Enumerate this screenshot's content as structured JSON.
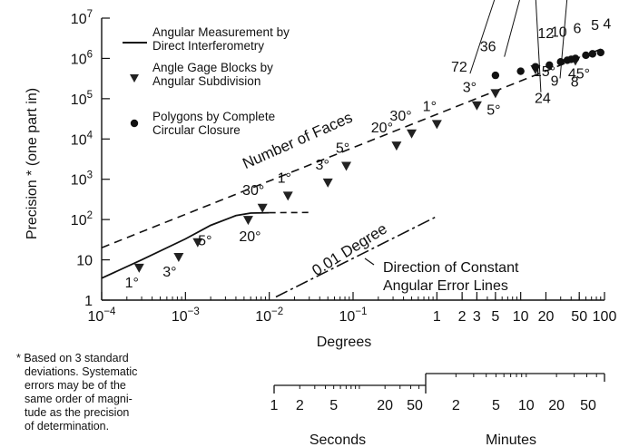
{
  "chart_data": {
    "type": "scatter",
    "x_scale": "log",
    "y_scale": "log",
    "xlabel": "Degrees",
    "ylabel": "Precision * (one part in)",
    "xlim": [
      0.0001,
      100
    ],
    "ylim": [
      1,
      10000000
    ],
    "grid": false,
    "legend_placement": "top-left",
    "x_ticks": [
      {
        "value": 0.0001,
        "base": "10",
        "exp": "−4"
      },
      {
        "value": 0.001,
        "base": "10",
        "exp": "−3"
      },
      {
        "value": 0.01,
        "base": "10",
        "exp": "−2"
      },
      {
        "value": 0.1,
        "base": "10",
        "exp": "−1"
      },
      {
        "value": 1,
        "base": "1",
        "exp": ""
      },
      {
        "value": 2,
        "base": "2",
        "exp": ""
      },
      {
        "value": 3,
        "base": "3",
        "exp": ""
      },
      {
        "value": 5,
        "base": "5",
        "exp": ""
      },
      {
        "value": 10,
        "base": "10",
        "exp": ""
      },
      {
        "value": 20,
        "base": "20",
        "exp": ""
      },
      {
        "value": 50,
        "base": "50",
        "exp": ""
      },
      {
        "value": 100,
        "base": "100",
        "exp": ""
      }
    ],
    "y_ticks": [
      {
        "value": 1,
        "base": "1",
        "exp": ""
      },
      {
        "value": 10,
        "base": "10",
        "exp": ""
      },
      {
        "value": 100,
        "base": "10",
        "exp": "2"
      },
      {
        "value": 1000,
        "base": "10",
        "exp": "3"
      },
      {
        "value": 10000,
        "base": "10",
        "exp": "4"
      },
      {
        "value": 100000,
        "base": "10",
        "exp": "5"
      },
      {
        "value": 1000000,
        "base": "10",
        "exp": "6"
      },
      {
        "value": 10000000,
        "base": "10",
        "exp": "7"
      }
    ],
    "legend": [
      {
        "marker": "line",
        "text": [
          "Angular Measurement by",
          "Direct Interferometry"
        ]
      },
      {
        "marker": "triangle",
        "text": [
          "Angle Gage Blocks by",
          "Angular Subdivision"
        ]
      },
      {
        "marker": "circle",
        "text": [
          "Polygons by Complete",
          "Circular Closure"
        ]
      }
    ],
    "series": [
      {
        "name": "Angular Measurement by Direct Interferometry",
        "marker": "line",
        "x": [
          0.0001,
          0.0003,
          0.001,
          0.002,
          0.004,
          0.006,
          0.01
        ],
        "y": [
          3.5,
          10,
          33,
          72,
          125,
          145,
          148
        ],
        "dashed_extension": {
          "x": [
            0.01,
            0.03
          ],
          "y": [
            148,
            150
          ]
        }
      },
      {
        "name": "Angle Gage Blocks by Angular Subdivision",
        "marker": "triangle",
        "points": [
          {
            "x": 0.00028,
            "y": 6.5,
            "label": "1°"
          },
          {
            "x": 0.00083,
            "y": 12,
            "label": "3°"
          },
          {
            "x": 0.0014,
            "y": 28,
            "label": "5°"
          },
          {
            "x": 0.0056,
            "y": 100,
            "label": "20°"
          },
          {
            "x": 0.0083,
            "y": 200,
            "label": "30°"
          },
          {
            "x": 0.0167,
            "y": 400,
            "label": "1°"
          },
          {
            "x": 0.05,
            "y": 850,
            "label": "3°"
          },
          {
            "x": 0.083,
            "y": 2200,
            "label": "5°"
          },
          {
            "x": 0.33,
            "y": 7000,
            "label": "20°"
          },
          {
            "x": 0.5,
            "y": 14000,
            "label": "30°"
          },
          {
            "x": 1,
            "y": 24000,
            "label": "1°"
          },
          {
            "x": 3,
            "y": 70000,
            "label": "3°"
          },
          {
            "x": 5,
            "y": 140000,
            "label": "5°"
          },
          {
            "x": 15,
            "y": 550000,
            "label": "15°"
          },
          {
            "x": 45,
            "y": 900000,
            "label": "45°"
          }
        ]
      },
      {
        "name": "Polygons by Complete Circular Closure",
        "marker": "circle",
        "points": [
          {
            "x": 5,
            "y": 380000,
            "label": "72"
          },
          {
            "x": 10,
            "y": 480000,
            "label": "36"
          },
          {
            "x": 15,
            "y": 620000,
            "label": "24"
          },
          {
            "x": 22,
            "y": 680000,
            "label": "12"
          },
          {
            "x": 30,
            "y": 820000,
            "label": "10"
          },
          {
            "x": 36,
            "y": 900000,
            "label": "9"
          },
          {
            "x": 40,
            "y": 950000,
            "label": "8"
          },
          {
            "x": 45,
            "y": 1000000,
            "label": "6"
          },
          {
            "x": 60,
            "y": 1200000,
            "label": "5"
          },
          {
            "x": 72,
            "y": 1300000,
            "label": "4"
          },
          {
            "x": 90,
            "y": 1400000,
            "label": ""
          }
        ]
      },
      {
        "name": "Number of Faces",
        "marker": "dashed",
        "x": [
          0.0001,
          90
        ],
        "y": [
          20,
          1700000
        ]
      },
      {
        "name": "0.01 Degree",
        "marker": "dash-dot",
        "x": [
          0.012,
          1
        ],
        "y": [
          1.2,
          120
        ]
      }
    ],
    "annotations": {
      "faces": "Number of Faces",
      "degree": "0.01 Degree",
      "direction_line1": "Direction of Constant",
      "direction_line2": "Angular Error Lines"
    },
    "angle_scale": {
      "seconds_ticks": [
        "1",
        "2",
        "5",
        "20",
        "50"
      ],
      "seconds_values": [
        1,
        2,
        5,
        20,
        50
      ],
      "minutes_ticks": [
        "2",
        "5",
        "10",
        "20",
        "50"
      ],
      "minutes_values": [
        2,
        5,
        10,
        20,
        50
      ],
      "seconds_label": "Seconds",
      "minutes_label": "Minutes"
    }
  },
  "footnote": [
    "* Based on 3 standard",
    "deviations. Systematic",
    "errors may be of the",
    "same order of magni-",
    "tude as the precision",
    "of determination."
  ]
}
